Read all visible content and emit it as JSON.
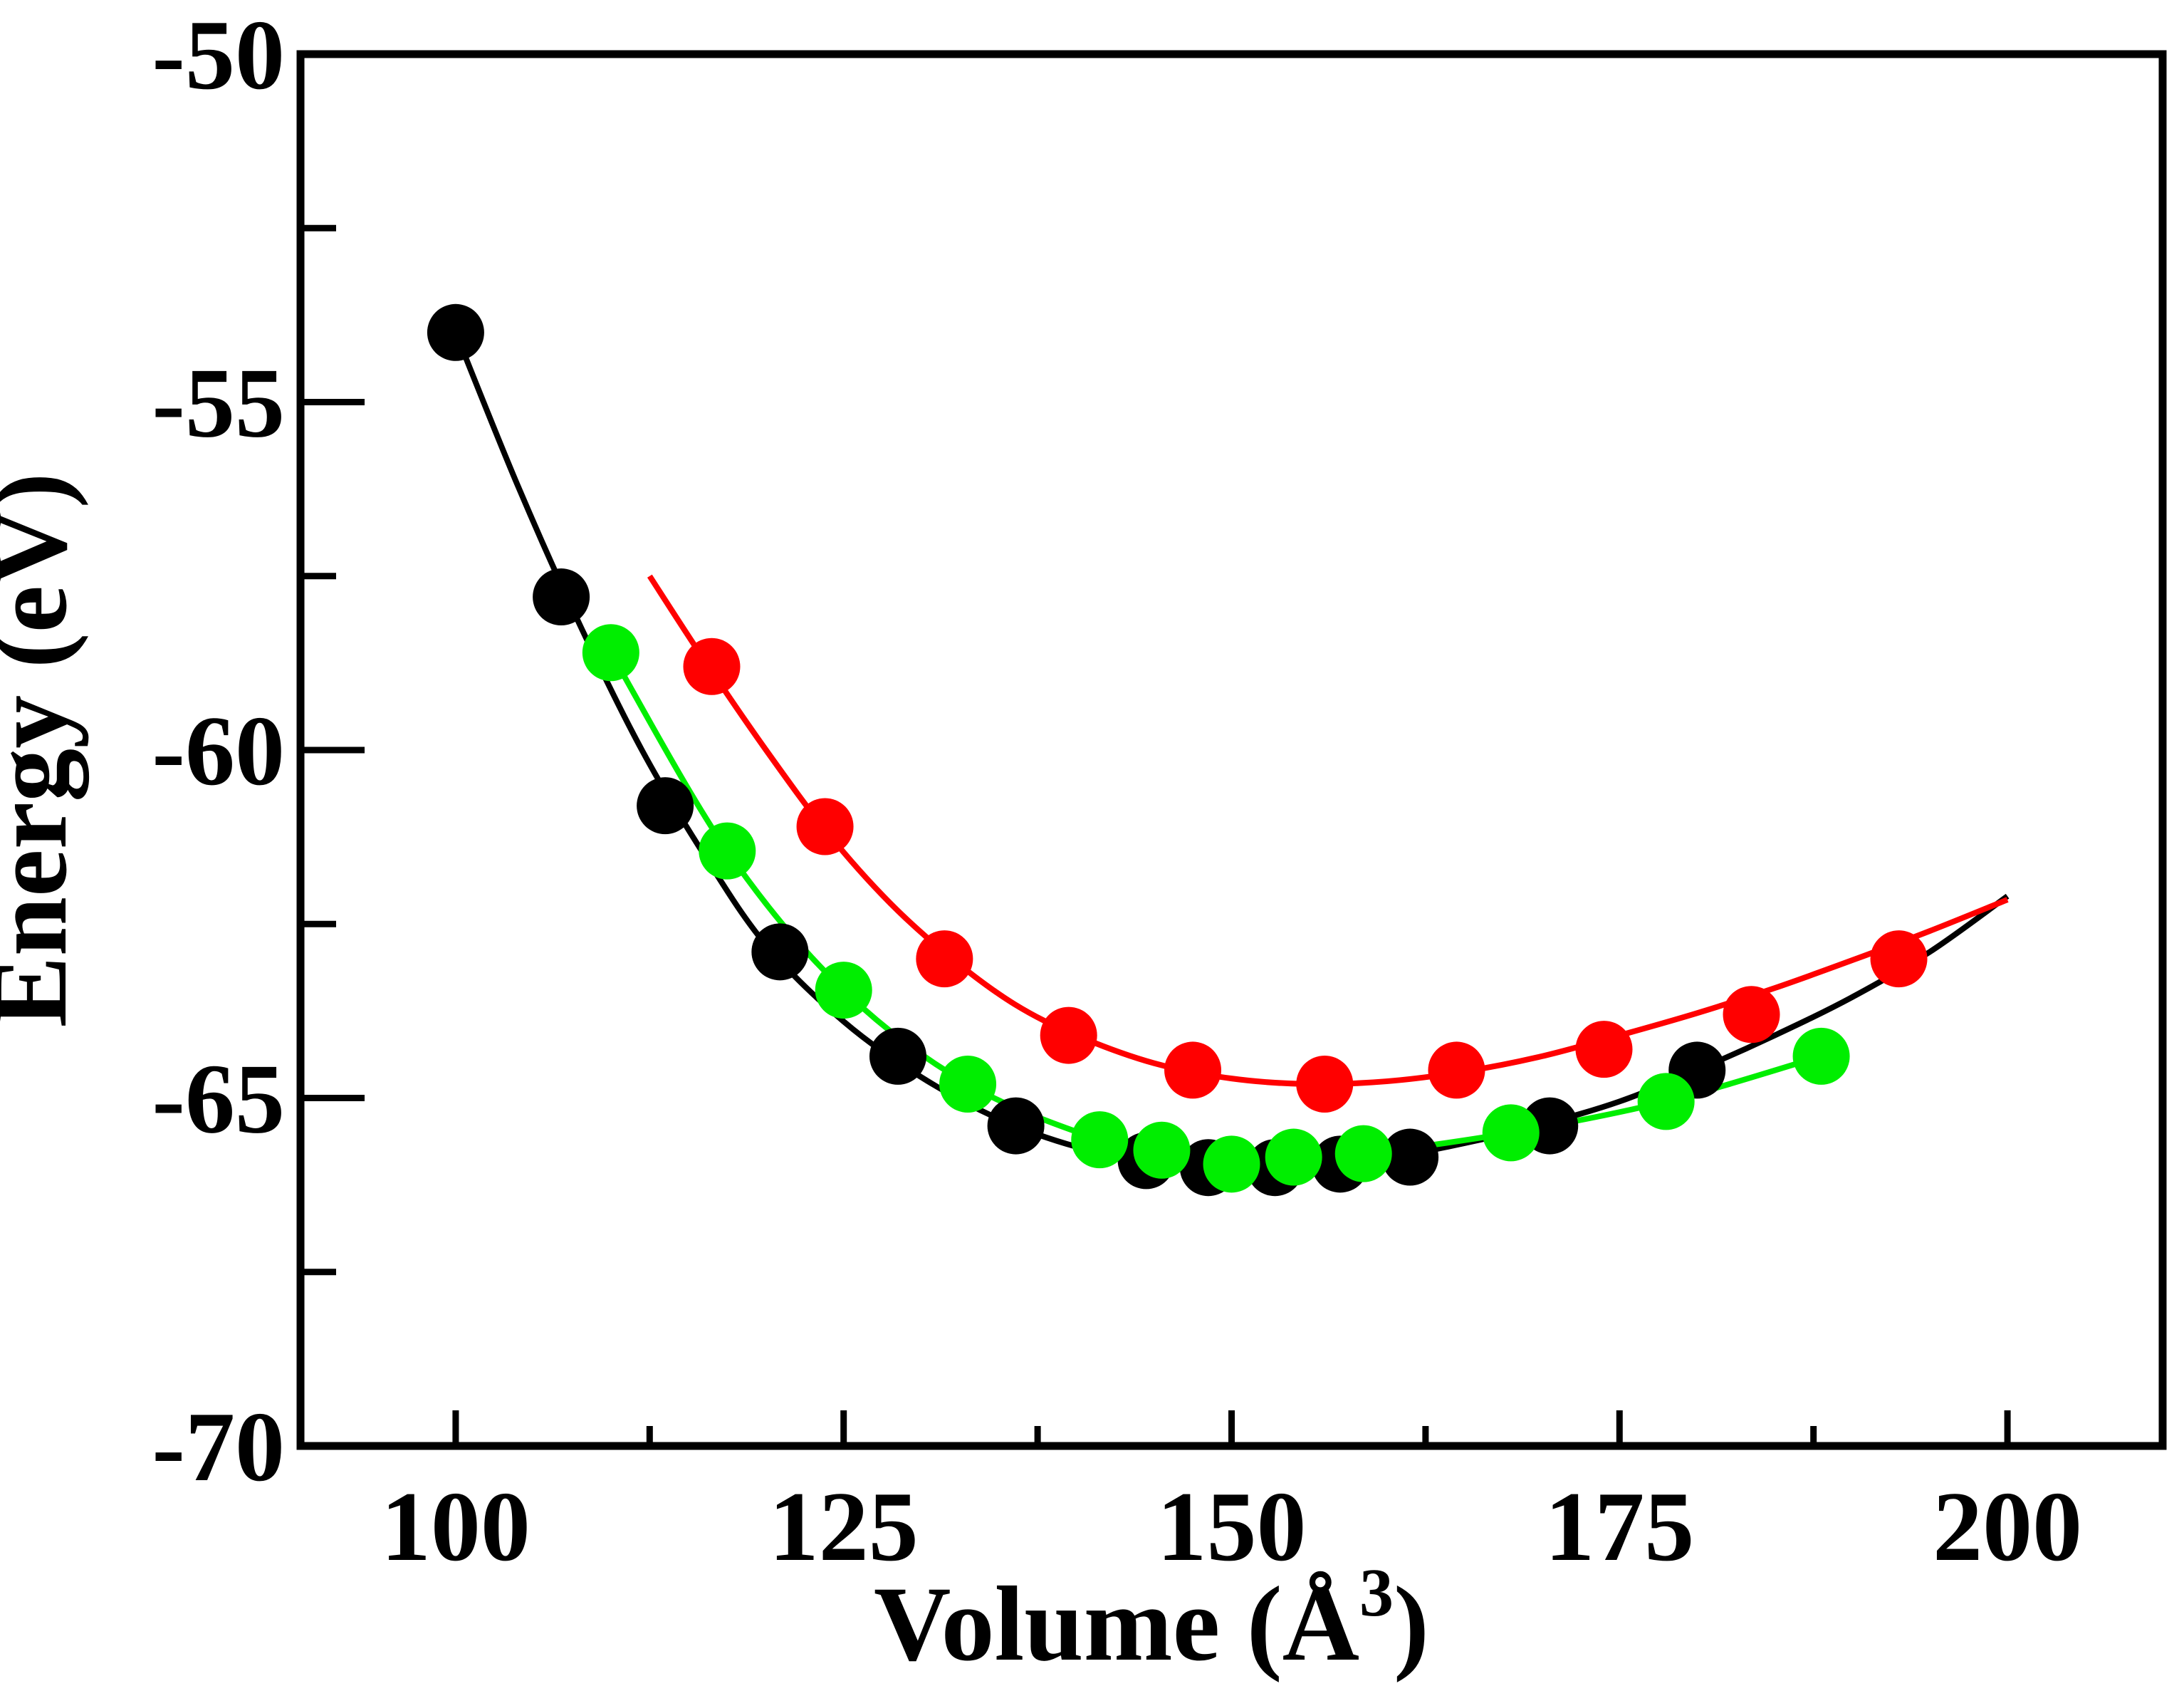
{
  "chart_data": {
    "type": "scatter",
    "title": "",
    "xlabel": "Volume (Å",
    "xlabel_superscript": "3",
    "xlabel_close": ")",
    "ylabel": "Energy (eV)",
    "xlim": [
      90,
      210
    ],
    "ylim": [
      -70,
      -50
    ],
    "xticks_major": [
      100,
      125,
      150,
      175,
      200
    ],
    "xticks_minor": [
      112.5,
      137.5,
      162.5,
      187.5
    ],
    "yticks_major": [
      -70,
      -65,
      -60,
      -55,
      -50
    ],
    "yticks_minor": [
      -67.5,
      -62.5,
      -57.5,
      -52.5
    ],
    "grid": false,
    "series": [
      {
        "name": "black",
        "color": "#000000",
        "points": [
          [
            100,
            -54.0
          ],
          [
            106.8,
            -57.8
          ],
          [
            113.5,
            -60.8
          ],
          [
            120.9,
            -62.9
          ],
          [
            128.5,
            -64.4
          ],
          [
            136.1,
            -65.4
          ],
          [
            144.5,
            -65.9
          ],
          [
            148.5,
            -66.0
          ],
          [
            152.8,
            -66.0
          ],
          [
            157.0,
            -65.95
          ],
          [
            161.5,
            -65.85
          ],
          [
            170.5,
            -65.4
          ],
          [
            180.0,
            -64.6
          ]
        ],
        "curve": [
          [
            100,
            -54.0
          ],
          [
            104,
            -56.2
          ],
          [
            108,
            -58.2
          ],
          [
            112,
            -60.0
          ],
          [
            116,
            -61.5
          ],
          [
            120,
            -62.8
          ],
          [
            125,
            -63.9
          ],
          [
            130,
            -64.7
          ],
          [
            135,
            -65.3
          ],
          [
            140,
            -65.7
          ],
          [
            145,
            -65.92
          ],
          [
            150,
            -66.0
          ],
          [
            155,
            -65.98
          ],
          [
            160,
            -65.86
          ],
          [
            165,
            -65.65
          ],
          [
            170,
            -65.38
          ],
          [
            175,
            -65.05
          ],
          [
            180,
            -64.6
          ],
          [
            185,
            -64.1
          ],
          [
            190,
            -63.55
          ],
          [
            195,
            -62.9
          ],
          [
            200,
            -62.1
          ]
        ]
      },
      {
        "name": "red",
        "color": "#ff0000",
        "points": [
          [
            116.5,
            -58.8
          ],
          [
            123.8,
            -61.1
          ],
          [
            131.5,
            -63.0
          ],
          [
            139.5,
            -64.1
          ],
          [
            147.5,
            -64.6
          ],
          [
            156.0,
            -64.8
          ],
          [
            164.5,
            -64.6
          ],
          [
            174.0,
            -64.3
          ],
          [
            183.5,
            -63.8
          ],
          [
            193.0,
            -63.0
          ]
        ],
        "curve": [
          [
            112.5,
            -57.5
          ],
          [
            116,
            -58.7
          ],
          [
            120,
            -60.0
          ],
          [
            124,
            -61.2
          ],
          [
            128,
            -62.2
          ],
          [
            132,
            -63.0
          ],
          [
            136,
            -63.65
          ],
          [
            140,
            -64.1
          ],
          [
            145,
            -64.5
          ],
          [
            150,
            -64.72
          ],
          [
            155,
            -64.8
          ],
          [
            160,
            -64.76
          ],
          [
            165,
            -64.62
          ],
          [
            170,
            -64.4
          ],
          [
            175,
            -64.1
          ],
          [
            180,
            -63.78
          ],
          [
            185,
            -63.42
          ],
          [
            190,
            -63.02
          ],
          [
            195,
            -62.6
          ],
          [
            200,
            -62.15
          ]
        ]
      },
      {
        "name": "green",
        "color": "#00ee00",
        "points": [
          [
            110.0,
            -58.6
          ],
          [
            117.5,
            -61.45
          ],
          [
            125.0,
            -63.45
          ],
          [
            133.0,
            -64.8
          ],
          [
            141.5,
            -65.6
          ],
          [
            145.5,
            -65.75
          ],
          [
            150.0,
            -65.95
          ],
          [
            154.0,
            -65.85
          ],
          [
            158.5,
            -65.8
          ],
          [
            168.0,
            -65.5
          ],
          [
            178.0,
            -65.05
          ],
          [
            188.0,
            -64.4
          ]
        ],
        "curve": [
          [
            110.0,
            -58.6
          ],
          [
            117.5,
            -61.45
          ],
          [
            125.0,
            -63.45
          ],
          [
            133.0,
            -64.8
          ],
          [
            141.5,
            -65.6
          ],
          [
            145.5,
            -65.75
          ],
          [
            150.0,
            -65.95
          ],
          [
            154.0,
            -65.85
          ],
          [
            158.5,
            -65.8
          ],
          [
            168.0,
            -65.5
          ],
          [
            178.0,
            -65.05
          ],
          [
            188.0,
            -64.4
          ]
        ]
      }
    ]
  }
}
